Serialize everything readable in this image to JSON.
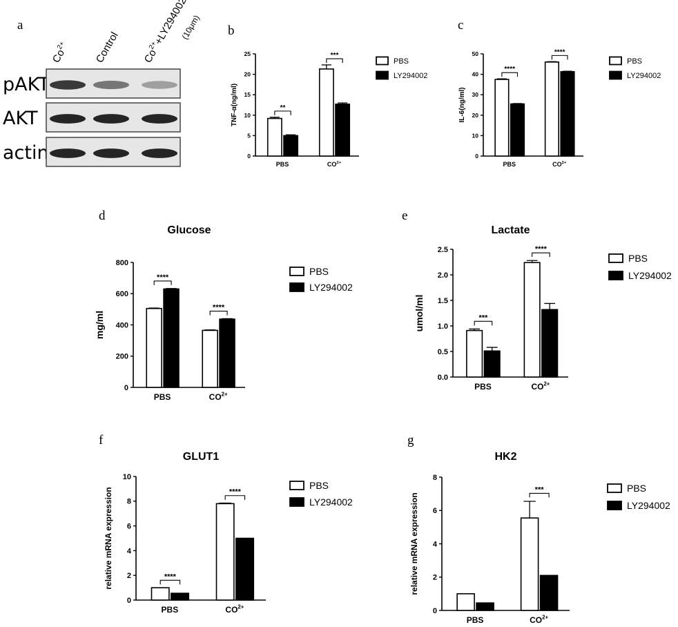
{
  "figure": {
    "panel_letters": [
      "a",
      "b",
      "c",
      "d",
      "e",
      "f",
      "g"
    ]
  },
  "western_blot": {
    "lanes": [
      {
        "base": "Co",
        "sup": "2+",
        "rest": ""
      },
      {
        "base": "Control",
        "sup": "",
        "rest": ""
      },
      {
        "base": "Co",
        "sup": "2+",
        "rest": "+LY294002"
      }
    ],
    "lane_note": "(10μm)",
    "rows": [
      {
        "label": "pAKT",
        "intensities": [
          0.85,
          0.55,
          0.35
        ]
      },
      {
        "label": "AKT",
        "intensities": [
          0.95,
          0.95,
          0.95
        ]
      },
      {
        "label": "actin",
        "intensities": [
          0.95,
          0.95,
          0.95
        ]
      }
    ]
  },
  "legend": {
    "pbs": "PBS",
    "ly": "LY294002"
  },
  "colors": {
    "pbs_fill": "#ffffff",
    "ly_fill": "#000000",
    "stroke": "#000000",
    "blot_bg": "#e6e6e6",
    "band": "#1a1a1a"
  },
  "chart_data": [
    {
      "panel": "b",
      "type": "bar",
      "title": "",
      "categories": [
        {
          "base": "PBS",
          "sup": ""
        },
        {
          "base": "CO",
          "sup": "2+"
        }
      ],
      "ylabel": "TNF-α(ng/ml)",
      "ylim": [
        0,
        25
      ],
      "yticks": [
        0,
        5,
        10,
        15,
        20,
        25
      ],
      "series": [
        {
          "name": "PBS",
          "values": [
            9.2,
            21.3
          ],
          "errors": [
            0.3,
            1.0
          ]
        },
        {
          "name": "LY294002",
          "values": [
            5.0,
            12.7
          ],
          "errors": [
            0.2,
            0.3
          ]
        }
      ],
      "significance": [
        "**",
        "***"
      ],
      "legend_position": "right"
    },
    {
      "panel": "c",
      "type": "bar",
      "title": "",
      "categories": [
        {
          "base": "PBS",
          "sup": ""
        },
        {
          "base": "CO",
          "sup": "2+"
        }
      ],
      "ylabel": "IL-6(ng/ml)",
      "ylim": [
        0,
        50
      ],
      "yticks": [
        0,
        10,
        20,
        30,
        40,
        50
      ],
      "series": [
        {
          "name": "PBS",
          "values": [
            37.5,
            46.0
          ],
          "errors": [
            0.3,
            0.2
          ]
        },
        {
          "name": "LY294002",
          "values": [
            25.5,
            41.3
          ],
          "errors": [
            0.2,
            0.2
          ]
        }
      ],
      "significance": [
        "****",
        "****"
      ],
      "legend_position": "right"
    },
    {
      "panel": "d",
      "type": "bar",
      "title": "Glucose",
      "categories": [
        {
          "base": "PBS",
          "sup": ""
        },
        {
          "base": "CO",
          "sup": "2+"
        }
      ],
      "ylabel": "mg/ml",
      "ylim": [
        0,
        800
      ],
      "yticks": [
        0,
        200,
        400,
        600,
        800
      ],
      "series": [
        {
          "name": "PBS",
          "values": [
            505,
            365
          ],
          "errors": [
            3,
            3
          ]
        },
        {
          "name": "LY294002",
          "values": [
            630,
            437
          ],
          "errors": [
            3,
            3
          ]
        }
      ],
      "significance": [
        "****",
        "****"
      ],
      "legend_position": "right"
    },
    {
      "panel": "e",
      "type": "bar",
      "title": "Lactate",
      "categories": [
        {
          "base": "PBS",
          "sup": ""
        },
        {
          "base": "CO",
          "sup": "2+"
        }
      ],
      "ylabel": "umol/ml",
      "ylim": [
        0,
        2.5
      ],
      "yticks": [
        0.0,
        0.5,
        1.0,
        1.5,
        2.0,
        2.5
      ],
      "series": [
        {
          "name": "PBS",
          "values": [
            0.91,
            2.24
          ],
          "errors": [
            0.03,
            0.04
          ]
        },
        {
          "name": "LY294002",
          "values": [
            0.51,
            1.32
          ],
          "errors": [
            0.07,
            0.12
          ]
        }
      ],
      "significance": [
        "***",
        "****"
      ],
      "legend_position": "right"
    },
    {
      "panel": "f",
      "type": "bar",
      "title": "GLUT1",
      "categories": [
        {
          "base": "PBS",
          "sup": ""
        },
        {
          "base": "CO",
          "sup": "2+"
        }
      ],
      "ylabel": "relative mRNA expression",
      "ylim": [
        0,
        10
      ],
      "yticks": [
        0,
        2,
        4,
        6,
        8,
        10
      ],
      "series": [
        {
          "name": "PBS",
          "values": [
            1.0,
            7.8
          ],
          "errors": [
            0,
            0.05
          ]
        },
        {
          "name": "LY294002",
          "values": [
            0.55,
            5.0
          ],
          "errors": [
            0,
            0
          ]
        }
      ],
      "significance": [
        "****",
        "****"
      ],
      "legend_position": "right"
    },
    {
      "panel": "g",
      "type": "bar",
      "title": "HK2",
      "categories": [
        {
          "base": "PBS",
          "sup": ""
        },
        {
          "base": "CO",
          "sup": "2+"
        }
      ],
      "ylabel": "relative mRNA expression",
      "ylim": [
        0,
        8
      ],
      "yticks": [
        0,
        2,
        4,
        6,
        8
      ],
      "series": [
        {
          "name": "PBS",
          "values": [
            1.0,
            5.55
          ],
          "errors": [
            0,
            1.0
          ]
        },
        {
          "name": "LY294002",
          "values": [
            0.45,
            2.1
          ],
          "errors": [
            0,
            0
          ]
        }
      ],
      "significance": [
        "",
        "***"
      ],
      "legend_position": "right"
    }
  ]
}
